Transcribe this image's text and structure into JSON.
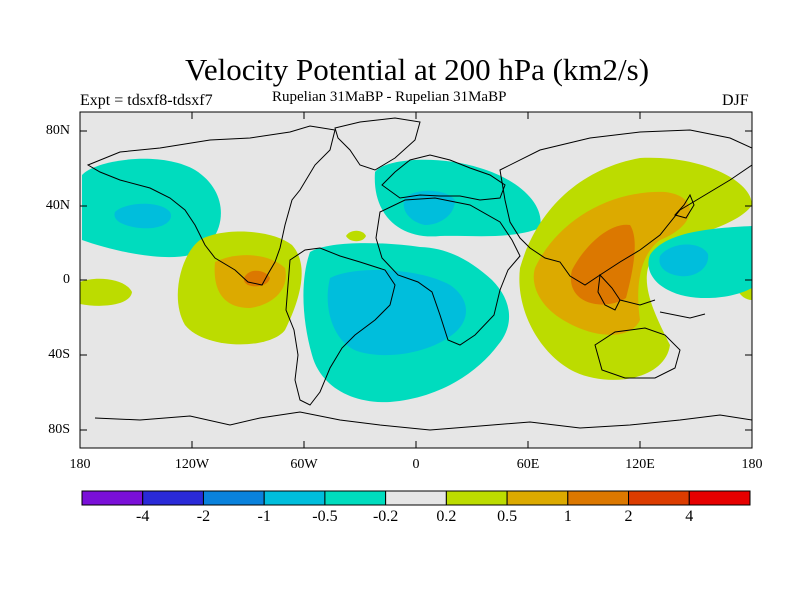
{
  "title": "Velocity Potential at 200 hPa (km2/s)",
  "subtitle": "Rupelian  31MaBP - Rupelian  31MaBP",
  "experiment": "Expt = tdsxf8-tdsxf7",
  "season": "DJF",
  "lat_labels": [
    "80N",
    "40N",
    "0",
    "40S",
    "80S"
  ],
  "lon_labels": [
    "180",
    "120W",
    "60W",
    "0",
    "60E",
    "120E",
    "180"
  ],
  "colorbar": {
    "labels": [
      "-4",
      "-2",
      "-1",
      "-0.5",
      "-0.2",
      "0.2",
      "0.5",
      "1",
      "2",
      "4"
    ],
    "colors": [
      "#7a10d8",
      "#2a2ad8",
      "#0a82dc",
      "#00bedc",
      "#00dcbe",
      "#e6e6e6",
      "#bcdc00",
      "#dcaa00",
      "#dc7800",
      "#dc3c00",
      "#e60000"
    ]
  },
  "map_colors": {
    "background": "#e6e6e6",
    "coast": "#000000"
  }
}
